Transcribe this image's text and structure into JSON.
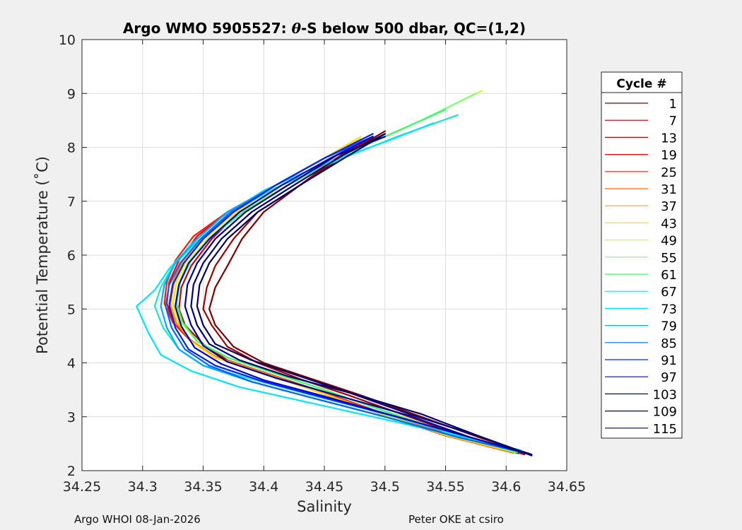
{
  "footer": {
    "left": "Argo WHOI 08-Jan-2026",
    "right": "Peter OKE at csiro"
  },
  "chart_data": {
    "type": "line",
    "title_prefix": "Argo WMO 5905527: ",
    "title_theta": "θ",
    "title_suffix": "-S below 500 dbar,  QC=(1,2)",
    "xlabel": "Salinity",
    "ylabel": "Potential Temperature (˚C)",
    "xlim": [
      34.25,
      34.65
    ],
    "ylim": [
      2,
      10
    ],
    "xticks": [
      "34.25",
      "34.3",
      "34.35",
      "34.4",
      "34.45",
      "34.5",
      "34.55",
      "34.6",
      "34.65"
    ],
    "yticks": [
      "2",
      "3",
      "4",
      "5",
      "6",
      "7",
      "8",
      "9",
      "10"
    ],
    "grid": true,
    "legend_title": "Cycle #",
    "legend_placement": "outside-right",
    "series": [
      {
        "name": "1",
        "color": "#800000",
        "x": [
          34.621,
          34.58,
          34.53,
          34.48,
          34.44,
          34.4,
          34.375,
          34.36,
          34.355,
          34.36,
          34.37,
          34.382,
          34.4,
          34.43,
          34.47,
          34.5
        ],
        "y": [
          2.3,
          2.6,
          3.0,
          3.4,
          3.7,
          4.0,
          4.3,
          4.7,
          5.0,
          5.4,
          5.8,
          6.3,
          6.8,
          7.3,
          7.9,
          8.3
        ]
      },
      {
        "name": "7",
        "color": "#a60000",
        "x": [
          34.615,
          34.57,
          34.52,
          34.47,
          34.43,
          34.395,
          34.37,
          34.357,
          34.35,
          34.353,
          34.36,
          34.375,
          34.395,
          34.43,
          34.46,
          34.49
        ],
        "y": [
          2.3,
          2.6,
          3.0,
          3.4,
          3.7,
          4.0,
          4.3,
          4.7,
          5.0,
          5.4,
          5.8,
          6.3,
          6.8,
          7.3,
          7.8,
          8.2
        ]
      },
      {
        "name": "13",
        "color": "#cc0000",
        "x": [
          34.61,
          34.56,
          34.5,
          34.45,
          34.41,
          34.37,
          34.35,
          34.335,
          34.33,
          34.332,
          34.34,
          34.357,
          34.38,
          34.42,
          34.46,
          34.49
        ],
        "y": [
          2.32,
          2.62,
          3.05,
          3.45,
          3.75,
          4.05,
          4.35,
          4.7,
          5.0,
          5.4,
          5.8,
          6.3,
          6.8,
          7.3,
          7.8,
          8.2
        ]
      },
      {
        "name": "19",
        "color": "#f20000",
        "x": [
          34.608,
          34.55,
          34.49,
          34.44,
          34.4,
          34.36,
          34.34,
          34.325,
          34.32,
          34.322,
          34.33,
          34.345,
          34.37,
          34.41,
          34.45,
          34.48
        ],
        "y": [
          2.34,
          2.65,
          3.1,
          3.5,
          3.8,
          4.1,
          4.4,
          4.75,
          5.1,
          5.5,
          5.9,
          6.35,
          6.8,
          7.3,
          7.8,
          8.1
        ]
      },
      {
        "name": "25",
        "color": "#ff1a00",
        "x": [
          34.606,
          34.55,
          34.49,
          34.44,
          34.4,
          34.36,
          34.34,
          34.325,
          34.318,
          34.32,
          34.327,
          34.342,
          34.37,
          34.41,
          34.45,
          34.48
        ],
        "y": [
          2.33,
          2.65,
          3.1,
          3.5,
          3.8,
          4.1,
          4.4,
          4.75,
          5.1,
          5.5,
          5.9,
          6.35,
          6.8,
          7.3,
          7.8,
          8.1
        ]
      },
      {
        "name": "31",
        "color": "#ff6600",
        "x": [
          34.605,
          34.55,
          34.49,
          34.44,
          34.4,
          34.36,
          34.34,
          34.327,
          34.322,
          34.325,
          34.333,
          34.35,
          34.375,
          34.41,
          34.45,
          34.48
        ],
        "y": [
          2.35,
          2.68,
          3.12,
          3.52,
          3.82,
          4.12,
          4.42,
          4.75,
          5.1,
          5.5,
          5.9,
          6.35,
          6.8,
          7.3,
          7.8,
          8.15
        ]
      },
      {
        "name": "37",
        "color": "#ffa500",
        "x": [
          34.606,
          34.55,
          34.49,
          34.44,
          34.4,
          34.36,
          34.34,
          34.328,
          34.323,
          34.326,
          34.334,
          34.35,
          34.375,
          34.41,
          34.45,
          34.48
        ],
        "y": [
          2.34,
          2.66,
          3.1,
          3.5,
          3.8,
          4.1,
          4.4,
          4.75,
          5.1,
          5.5,
          5.9,
          6.35,
          6.8,
          7.3,
          7.8,
          8.15
        ]
      },
      {
        "name": "43",
        "color": "#ffe000",
        "x": [
          34.607,
          34.55,
          34.49,
          34.44,
          34.4,
          34.36,
          34.34,
          34.33,
          34.325,
          34.328,
          34.336,
          34.352,
          34.378,
          34.41,
          34.45,
          34.48
        ],
        "y": [
          2.34,
          2.66,
          3.1,
          3.5,
          3.8,
          4.1,
          4.4,
          4.75,
          5.1,
          5.5,
          5.9,
          6.35,
          6.8,
          7.3,
          7.8,
          8.2
        ]
      },
      {
        "name": "49",
        "color": "#c8ff37",
        "x": [
          34.608,
          34.56,
          34.5,
          34.45,
          34.41,
          34.37,
          34.345,
          34.332,
          34.327,
          34.33,
          34.338,
          34.355,
          34.38,
          34.42,
          34.47,
          34.53,
          34.58
        ],
        "y": [
          2.34,
          2.66,
          3.1,
          3.5,
          3.8,
          4.1,
          4.4,
          4.75,
          5.1,
          5.5,
          5.9,
          6.35,
          6.8,
          7.3,
          7.9,
          8.5,
          9.05
        ]
      },
      {
        "name": "55",
        "color": "#7dff7d",
        "x": [
          34.608,
          34.56,
          34.5,
          34.45,
          34.41,
          34.37,
          34.345,
          34.333,
          34.328,
          34.331,
          34.34,
          34.357,
          34.383,
          34.42,
          34.47,
          34.53,
          34.575
        ],
        "y": [
          2.34,
          2.66,
          3.1,
          3.5,
          3.8,
          4.1,
          4.4,
          4.75,
          5.1,
          5.5,
          5.9,
          6.35,
          6.8,
          7.3,
          7.9,
          8.5,
          9.0
        ]
      },
      {
        "name": "61",
        "color": "#37ff65",
        "x": [
          34.609,
          34.56,
          34.5,
          34.45,
          34.41,
          34.37,
          34.345,
          34.333,
          34.328,
          34.331,
          34.34,
          34.357,
          34.383,
          34.42,
          34.47,
          34.51,
          34.55
        ],
        "y": [
          2.34,
          2.66,
          3.1,
          3.5,
          3.8,
          4.1,
          4.4,
          4.75,
          5.1,
          5.5,
          5.9,
          6.35,
          6.8,
          7.3,
          7.9,
          8.3,
          8.7
        ]
      },
      {
        "name": "67",
        "color": "#19e8c8",
        "x": [
          34.61,
          34.56,
          34.5,
          34.44,
          34.39,
          34.35,
          34.33,
          34.317,
          34.31,
          34.315,
          34.325,
          34.345,
          34.37,
          34.41,
          34.46,
          34.51,
          34.56
        ],
        "y": [
          2.36,
          2.66,
          3.05,
          3.4,
          3.7,
          3.95,
          4.25,
          4.65,
          5.05,
          5.4,
          5.8,
          6.25,
          6.75,
          7.25,
          7.75,
          8.2,
          8.6
        ]
      },
      {
        "name": "73",
        "color": "#00e5ff",
        "x": [
          34.612,
          34.56,
          34.5,
          34.44,
          34.38,
          34.34,
          34.315,
          34.305,
          34.295,
          34.31,
          34.322,
          34.34,
          34.365,
          34.4,
          34.45,
          34.5,
          34.54
        ],
        "y": [
          2.38,
          2.64,
          2.95,
          3.25,
          3.55,
          3.85,
          4.15,
          4.55,
          5.05,
          5.35,
          5.75,
          6.2,
          6.7,
          7.2,
          7.7,
          8.1,
          8.45
        ]
      },
      {
        "name": "79",
        "color": "#00aaff",
        "x": [
          34.615,
          34.56,
          34.5,
          34.44,
          34.39,
          34.35,
          34.33,
          34.32,
          34.315,
          34.318,
          34.327,
          34.345,
          34.37,
          34.41,
          34.45,
          34.49
        ],
        "y": [
          2.33,
          2.62,
          3.0,
          3.35,
          3.65,
          3.95,
          4.25,
          4.65,
          5.05,
          5.45,
          5.85,
          6.3,
          6.8,
          7.3,
          7.8,
          8.2
        ]
      },
      {
        "name": "85",
        "color": "#0066ff",
        "x": [
          34.617,
          34.56,
          34.5,
          34.44,
          34.39,
          34.355,
          34.335,
          34.324,
          34.319,
          34.322,
          34.331,
          34.348,
          34.373,
          34.41,
          34.45,
          34.49
        ],
        "y": [
          2.32,
          2.62,
          3.0,
          3.35,
          3.65,
          3.95,
          4.25,
          4.65,
          5.05,
          5.45,
          5.85,
          6.3,
          6.8,
          7.3,
          7.8,
          8.2
        ]
      },
      {
        "name": "91",
        "color": "#0022ff",
        "x": [
          34.618,
          34.57,
          34.51,
          34.45,
          34.4,
          34.36,
          34.338,
          34.327,
          34.322,
          34.325,
          34.334,
          34.35,
          34.375,
          34.41,
          34.45,
          34.49
        ],
        "y": [
          2.31,
          2.62,
          3.0,
          3.35,
          3.65,
          3.95,
          4.25,
          4.65,
          5.05,
          5.45,
          5.85,
          6.3,
          6.8,
          7.3,
          7.8,
          8.25
        ]
      },
      {
        "name": "97",
        "color": "#0000cc",
        "x": [
          34.619,
          34.57,
          34.51,
          34.45,
          34.4,
          34.365,
          34.343,
          34.332,
          34.327,
          34.33,
          34.338,
          34.355,
          34.38,
          34.415,
          34.455,
          34.49
        ],
        "y": [
          2.31,
          2.62,
          3.0,
          3.38,
          3.68,
          3.98,
          4.28,
          4.68,
          5.05,
          5.45,
          5.85,
          6.3,
          6.8,
          7.3,
          7.8,
          8.2
        ]
      },
      {
        "name": "103",
        "color": "#000099",
        "x": [
          34.62,
          34.57,
          34.52,
          34.46,
          34.41,
          34.37,
          34.35,
          34.34,
          34.335,
          34.337,
          34.345,
          34.36,
          34.385,
          34.42,
          34.46,
          34.5
        ],
        "y": [
          2.3,
          2.62,
          3.02,
          3.4,
          3.72,
          4.02,
          4.32,
          4.7,
          5.05,
          5.45,
          5.85,
          6.3,
          6.8,
          7.3,
          7.85,
          8.2
        ]
      },
      {
        "name": "109",
        "color": "#00007a",
        "x": [
          34.621,
          34.58,
          34.52,
          34.47,
          34.42,
          34.38,
          34.355,
          34.345,
          34.34,
          34.342,
          34.35,
          34.365,
          34.39,
          34.425,
          34.465,
          34.5
        ],
        "y": [
          2.29,
          2.62,
          3.05,
          3.45,
          3.75,
          4.05,
          4.35,
          4.7,
          5.05,
          5.45,
          5.85,
          6.3,
          6.8,
          7.3,
          7.85,
          8.25
        ]
      },
      {
        "name": "115",
        "color": "#000066",
        "x": [
          34.621,
          34.58,
          34.53,
          34.47,
          34.43,
          34.39,
          34.36,
          34.35,
          34.345,
          34.347,
          34.355,
          34.37,
          34.395,
          34.43,
          34.47,
          34.5
        ],
        "y": [
          2.28,
          2.62,
          3.05,
          3.45,
          3.75,
          4.05,
          4.35,
          4.7,
          5.05,
          5.45,
          5.85,
          6.3,
          6.8,
          7.3,
          7.85,
          8.25
        ]
      }
    ]
  }
}
